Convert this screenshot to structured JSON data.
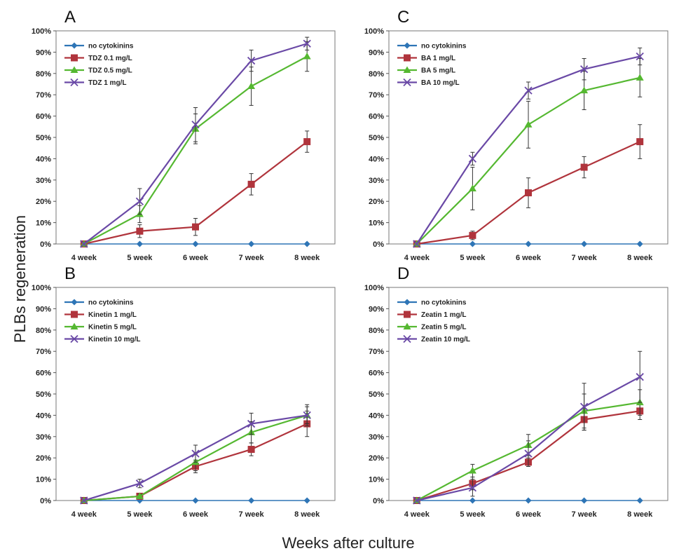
{
  "figure": {
    "ylabel": "PLBs regeneration",
    "xlabel": "Weeks after culture"
  },
  "colors": {
    "no_cytokinins": "#2E75B6",
    "low": "#B0343C",
    "mid": "#55B831",
    "high": "#6A49A6",
    "error_bar": "#333333",
    "axis": "#555555"
  },
  "chart_data": [
    {
      "type": "line",
      "panel": "A",
      "categories": [
        "4 week",
        "5 week",
        "6 week",
        "7 week",
        "8 week"
      ],
      "y_ticks": [
        "0%",
        "10%",
        "20%",
        "30%",
        "40%",
        "50%",
        "60%",
        "70%",
        "80%",
        "90%",
        "100%"
      ],
      "ylim": [
        0,
        100
      ],
      "legend_position": "top-left",
      "series": [
        {
          "name": "no cytokinins",
          "marker": "diamond",
          "color": "#2E75B6",
          "values": [
            0,
            0,
            0,
            0,
            0
          ],
          "errors": [
            0,
            0,
            0,
            0,
            0
          ]
        },
        {
          "name": "TDZ 0.1 mg/L",
          "marker": "square",
          "color": "#B0343C",
          "values": [
            0,
            6,
            8,
            28,
            48
          ],
          "errors": [
            0,
            3,
            4,
            5,
            5
          ]
        },
        {
          "name": "TDZ 0.5 mg/L",
          "marker": "triangle",
          "color": "#55B831",
          "values": [
            0,
            14,
            54,
            74,
            88
          ],
          "errors": [
            0,
            4,
            7,
            9,
            7
          ]
        },
        {
          "name": "TDZ 1 mg/L",
          "marker": "x",
          "color": "#6A49A6",
          "values": [
            0,
            20,
            56,
            86,
            94
          ],
          "errors": [
            0,
            6,
            8,
            5,
            3
          ]
        }
      ]
    },
    {
      "type": "line",
      "panel": "C",
      "categories": [
        "4 week",
        "5 week",
        "6 week",
        "7 week",
        "8 week"
      ],
      "y_ticks": [
        "0%",
        "10%",
        "20%",
        "30%",
        "40%",
        "50%",
        "60%",
        "70%",
        "80%",
        "90%",
        "100%"
      ],
      "ylim": [
        0,
        100
      ],
      "legend_position": "top-left",
      "series": [
        {
          "name": "no cytokinins",
          "marker": "diamond",
          "color": "#2E75B6",
          "values": [
            0,
            0,
            0,
            0,
            0
          ],
          "errors": [
            0,
            0,
            0,
            0,
            0
          ]
        },
        {
          "name": "BA 1 mg/L",
          "marker": "square",
          "color": "#B0343C",
          "values": [
            0,
            4,
            24,
            36,
            48
          ],
          "errors": [
            0,
            2,
            7,
            5,
            8
          ]
        },
        {
          "name": "BA 5 mg/L",
          "marker": "triangle",
          "color": "#55B831",
          "values": [
            0,
            26,
            56,
            72,
            78
          ],
          "errors": [
            0,
            10,
            11,
            9,
            9
          ]
        },
        {
          "name": "BA 10 mg/L",
          "marker": "x",
          "color": "#6A49A6",
          "values": [
            0,
            40,
            72,
            82,
            88
          ],
          "errors": [
            0,
            3,
            4,
            5,
            4
          ]
        }
      ]
    },
    {
      "type": "line",
      "panel": "B",
      "categories": [
        "4 week",
        "5 week",
        "6 week",
        "7 week",
        "8 week"
      ],
      "y_ticks": [
        "0%",
        "10%",
        "20%",
        "30%",
        "40%",
        "50%",
        "60%",
        "70%",
        "80%",
        "90%",
        "100%"
      ],
      "ylim": [
        0,
        100
      ],
      "legend_position": "top-left",
      "series": [
        {
          "name": "no cytokinins",
          "marker": "diamond",
          "color": "#2E75B6",
          "values": [
            0,
            0,
            0,
            0,
            0
          ],
          "errors": [
            0,
            0,
            0,
            0,
            0
          ]
        },
        {
          "name": "Kinetin 1 mg/L",
          "marker": "square",
          "color": "#B0343C",
          "values": [
            0,
            2,
            16,
            24,
            36
          ],
          "errors": [
            0,
            1,
            3,
            3,
            6
          ]
        },
        {
          "name": "Kinetin 5 mg/L",
          "marker": "triangle",
          "color": "#55B831",
          "values": [
            0,
            2,
            18,
            32,
            40
          ],
          "errors": [
            0,
            1,
            4,
            5,
            5
          ]
        },
        {
          "name": "Kinetin 10 mg/L",
          "marker": "x",
          "color": "#6A49A6",
          "values": [
            0,
            8,
            22,
            36,
            40
          ],
          "errors": [
            0,
            2,
            4,
            5,
            4
          ]
        }
      ]
    },
    {
      "type": "line",
      "panel": "D",
      "categories": [
        "4 week",
        "5 week",
        "6 week",
        "7 week",
        "8 week"
      ],
      "y_ticks": [
        "0%",
        "10%",
        "20%",
        "30%",
        "40%",
        "50%",
        "60%",
        "70%",
        "80%",
        "90%",
        "100%"
      ],
      "ylim": [
        0,
        100
      ],
      "legend_position": "top-left",
      "series": [
        {
          "name": "no cytokinins",
          "marker": "diamond",
          "color": "#2E75B6",
          "values": [
            0,
            0,
            0,
            0,
            0
          ],
          "errors": [
            0,
            0,
            0,
            0,
            0
          ]
        },
        {
          "name": "Zeatin 1 mg/L",
          "marker": "square",
          "color": "#B0343C",
          "values": [
            0,
            8,
            18,
            38,
            42
          ],
          "errors": [
            0,
            3,
            2,
            5,
            4
          ]
        },
        {
          "name": "Zeatin 5 mg/L",
          "marker": "triangle",
          "color": "#55B831",
          "values": [
            0,
            14,
            26,
            42,
            46
          ],
          "errors": [
            0,
            3,
            5,
            8,
            6
          ]
        },
        {
          "name": "Zeatin 10 mg/L",
          "marker": "x",
          "color": "#6A49A6",
          "values": [
            0,
            6,
            22,
            44,
            58
          ],
          "errors": [
            0,
            4,
            6,
            11,
            12
          ]
        }
      ]
    }
  ]
}
